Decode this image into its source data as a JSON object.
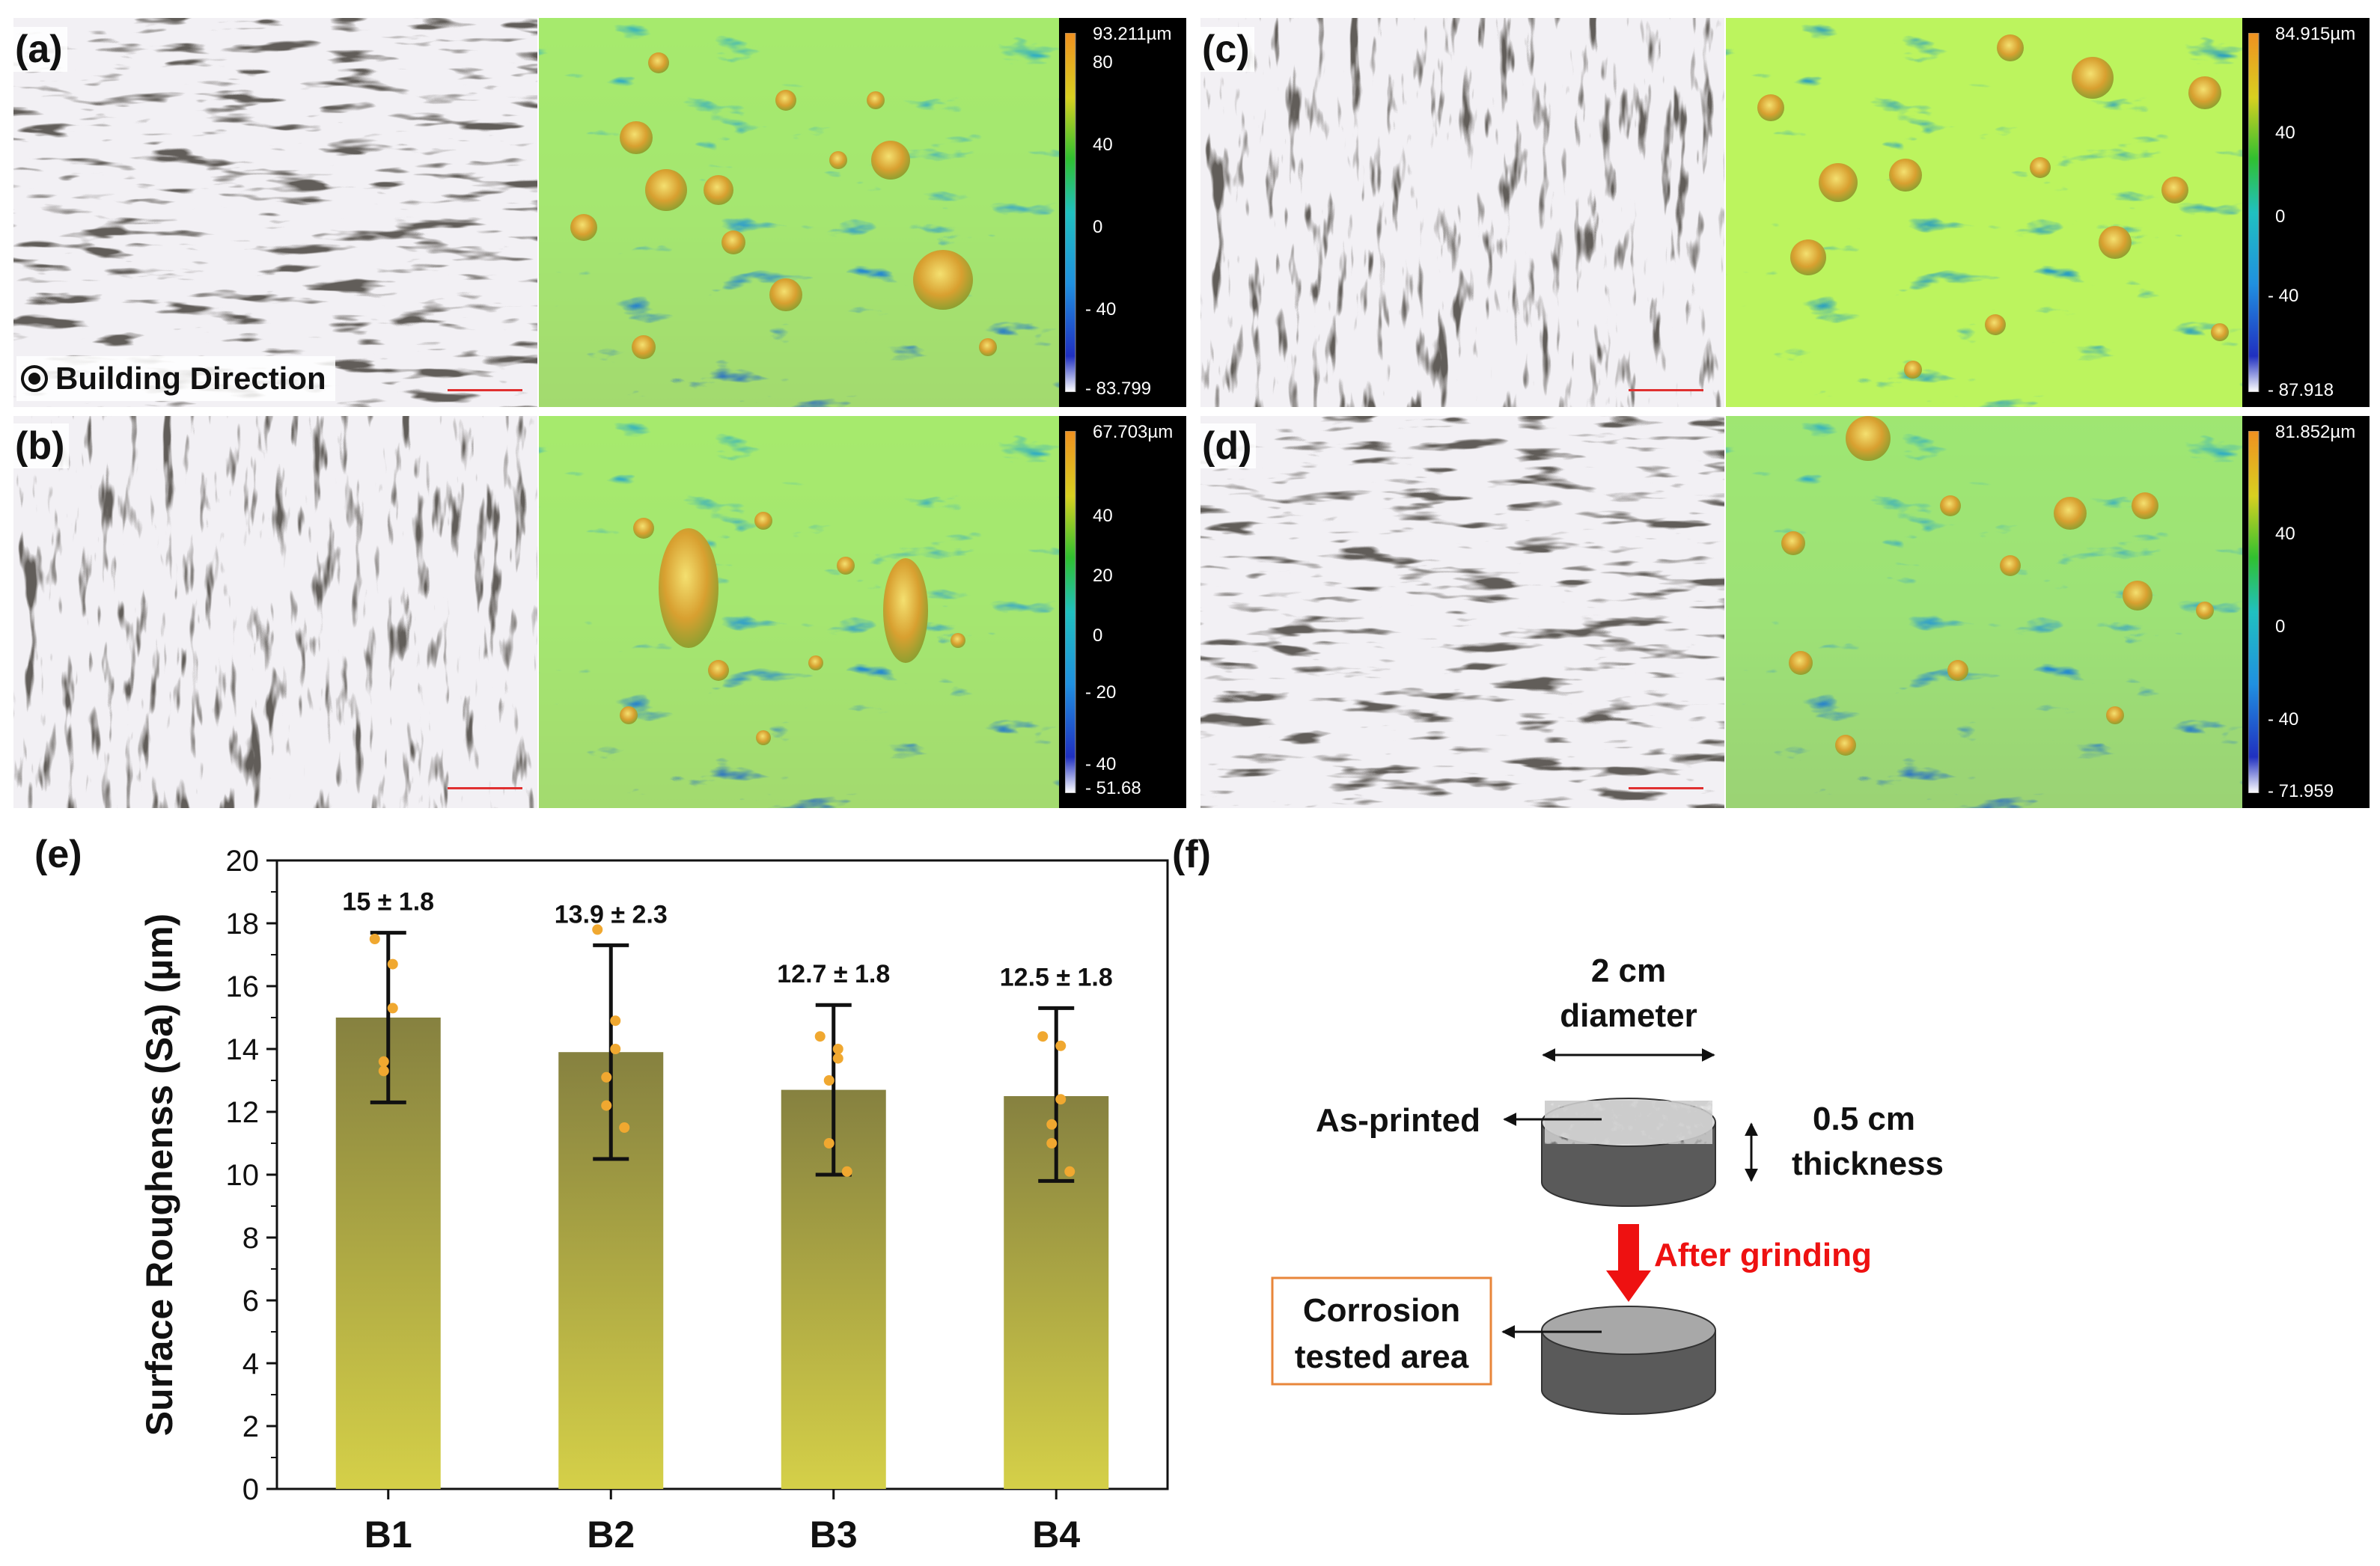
{
  "panels": {
    "a": {
      "label": "(a)",
      "cbar_max": "93.211µm",
      "cbar_ticks": [
        "80",
        "40",
        "0",
        "- 40"
      ],
      "cbar_min": "- 83.799"
    },
    "b": {
      "label": "(b)",
      "cbar_max": "67.703µm",
      "cbar_ticks": [
        "40",
        "20",
        "0",
        "- 20",
        "- 40"
      ],
      "cbar_min": "- 51.68"
    },
    "c": {
      "label": "(c)",
      "cbar_max": "84.915µm",
      "cbar_ticks": [
        "40",
        "0",
        "- 40"
      ],
      "cbar_min": "- 87.918"
    },
    "d": {
      "label": "(d)",
      "cbar_max": "81.852µm",
      "cbar_ticks": [
        "40",
        "0",
        "- 40"
      ],
      "cbar_min": "- 71.959"
    }
  },
  "building_direction": "Building Direction",
  "chart_label": "(e)",
  "chart_data": {
    "type": "bar",
    "categories": [
      "B1",
      "B2",
      "B3",
      "B4"
    ],
    "values": [
      15,
      13.9,
      12.7,
      12.5
    ],
    "errors": [
      [
        12.3,
        17.7
      ],
      [
        10.5,
        17.3
      ],
      [
        10.0,
        15.4
      ],
      [
        9.8,
        15.3
      ]
    ],
    "bar_labels": [
      "15 ± 1.8",
      "13.9 ± 2.3",
      "12.7 ± 1.8",
      "12.5 ± 1.8"
    ],
    "points": [
      [
        17.5,
        16.7,
        15.3,
        13.6,
        13.3
      ],
      [
        17.8,
        14.9,
        14.0,
        13.1,
        12.2,
        11.5
      ],
      [
        14.4,
        14.0,
        13.7,
        13.0,
        11.0,
        10.1
      ],
      [
        14.4,
        14.1,
        12.4,
        11.6,
        11.0,
        10.1
      ]
    ],
    "ylabel": "Surface Roughenss (Sa) (µm)",
    "xlabel": "",
    "ylim": [
      0,
      20
    ],
    "yticks": [
      "0",
      "2",
      "4",
      "6",
      "8",
      "10",
      "12",
      "14",
      "16",
      "18",
      "20"
    ],
    "bar_gradient": [
      "#868140",
      "#d5d048"
    ],
    "point_color": "#f0a830"
  },
  "schematic": {
    "label": "(f)",
    "diameter_line1": "2 cm",
    "diameter_line2": "diameter",
    "as_printed": "As-printed",
    "thickness_line1": "0.5 cm",
    "thickness_line2": "thickness",
    "after_grinding": "After grinding",
    "corrosion_line1": "Corrosion",
    "corrosion_line2": "tested area"
  }
}
